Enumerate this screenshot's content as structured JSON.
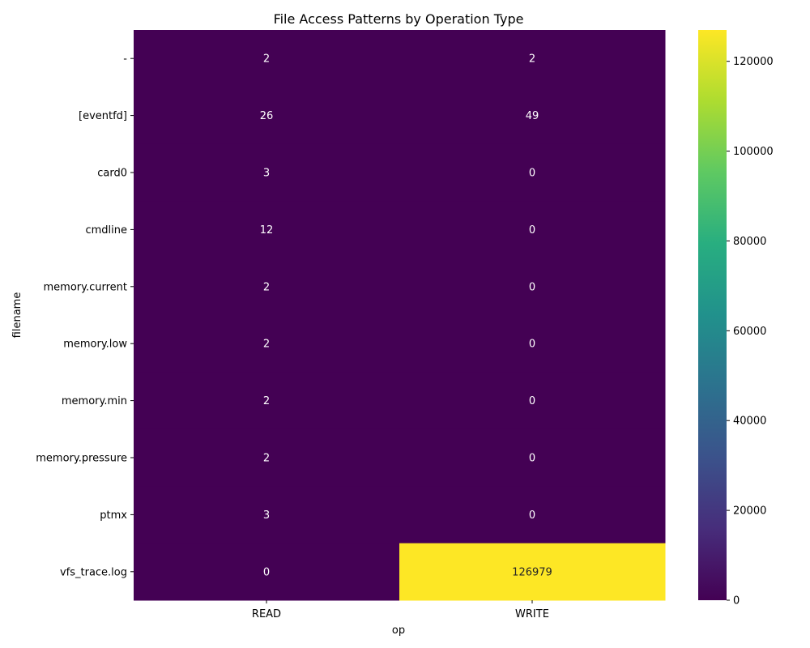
{
  "chart_data": {
    "type": "heatmap",
    "title": "File Access Patterns by Operation Type",
    "xlabel": "op",
    "ylabel": "filename",
    "columns": [
      "READ",
      "WRITE"
    ],
    "rows": [
      "-",
      "[eventfd]",
      "card0",
      "cmdline",
      "memory.current",
      "memory.low",
      "memory.min",
      "memory.pressure",
      "ptmx",
      "vfs_trace.log"
    ],
    "values": [
      [
        2,
        2
      ],
      [
        26,
        49
      ],
      [
        3,
        0
      ],
      [
        12,
        0
      ],
      [
        2,
        0
      ],
      [
        2,
        0
      ],
      [
        2,
        0
      ],
      [
        2,
        0
      ],
      [
        3,
        0
      ],
      [
        0,
        126979
      ]
    ],
    "colormap": "viridis",
    "colorbar": {
      "min": 0,
      "max": 126979,
      "ticks": [
        0,
        20000,
        40000,
        60000,
        80000,
        100000,
        120000
      ]
    }
  }
}
